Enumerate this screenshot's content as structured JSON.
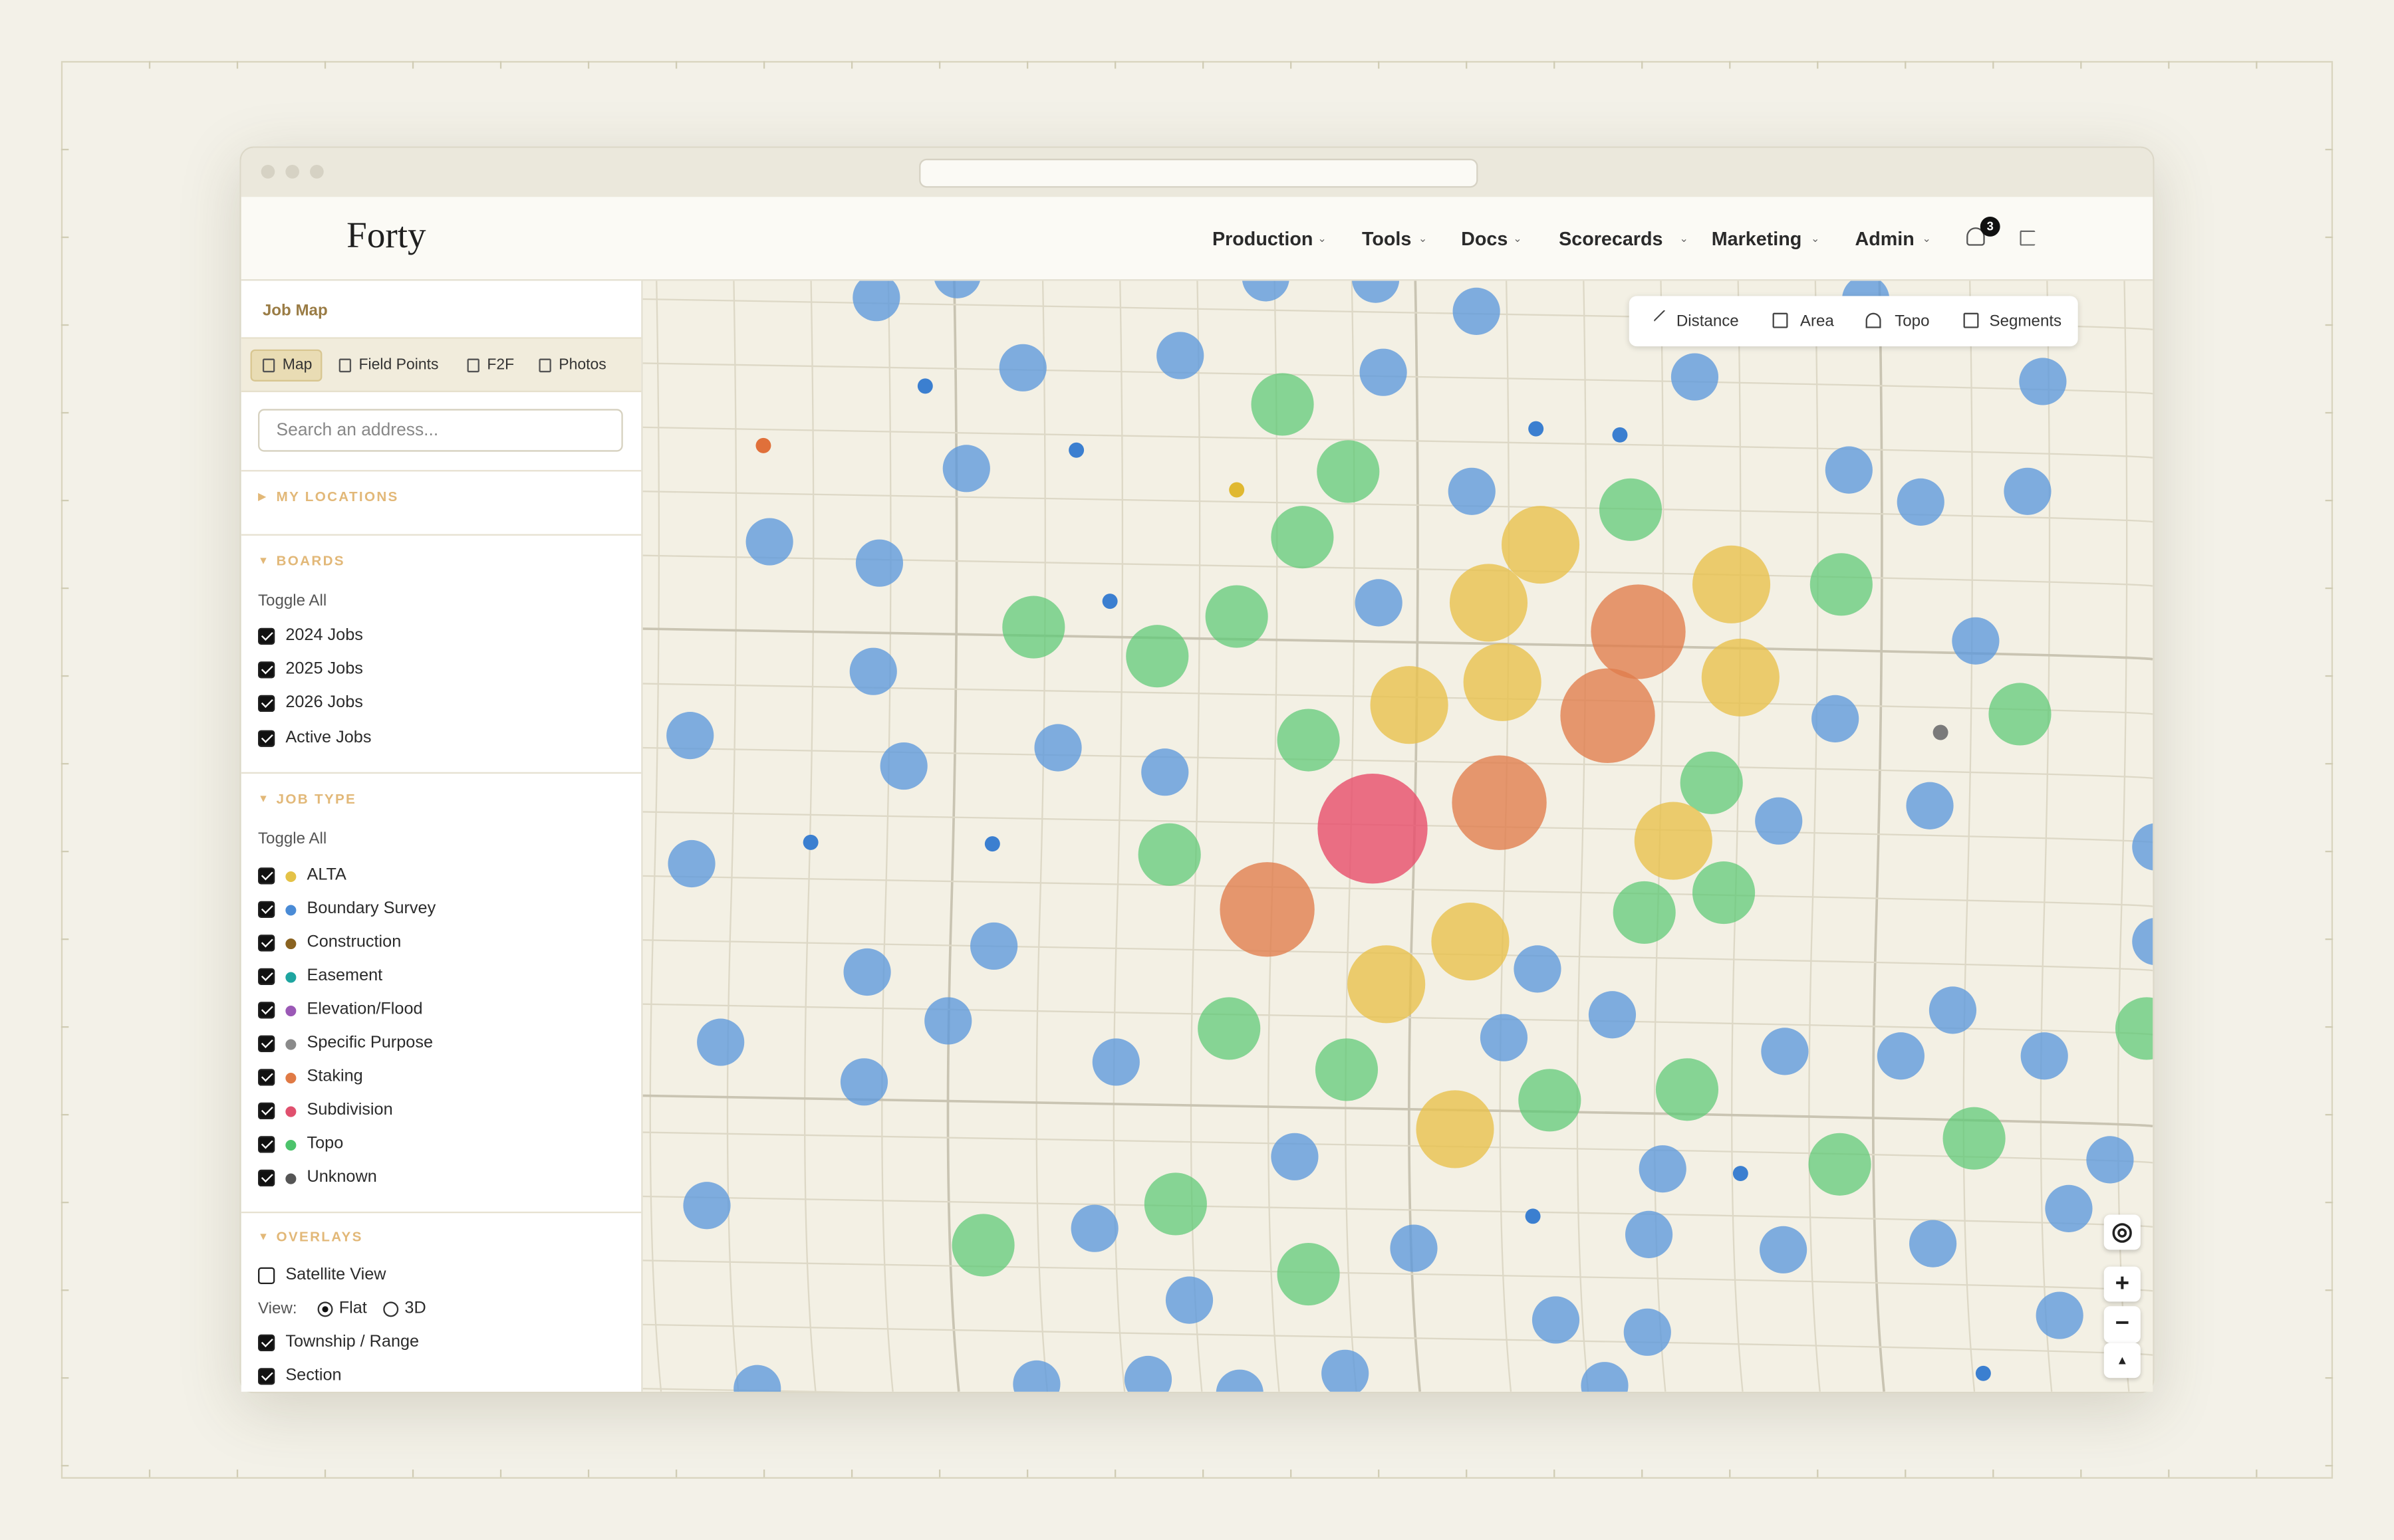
{
  "header": {
    "brand": "Forty",
    "nav": [
      "Production",
      "Tools",
      "Docs",
      "Scorecards",
      "Marketing",
      "Admin"
    ],
    "notifications": "3"
  },
  "sidebar": {
    "title": "Job Map",
    "tabs": [
      "Map",
      "Field Points",
      "F2F",
      "Photos"
    ],
    "search_placeholder": "Search an address...",
    "my_locations": "MY LOCATIONS",
    "boards": {
      "title": "BOARDS",
      "toggle": "Toggle All",
      "items": [
        {
          "label": "2024 Jobs",
          "checked": true
        },
        {
          "label": "2025 Jobs",
          "checked": true
        },
        {
          "label": "2026 Jobs",
          "checked": true
        },
        {
          "label": "Active Jobs",
          "checked": true
        }
      ]
    },
    "job_type": {
      "title": "JOB TYPE",
      "toggle": "Toggle All",
      "items": [
        {
          "label": "ALTA",
          "color": "#e4c247",
          "checked": true
        },
        {
          "label": "Boundary Survey",
          "color": "#4a8bd6",
          "checked": true
        },
        {
          "label": "Construction",
          "color": "#8a6320",
          "checked": true
        },
        {
          "label": "Easement",
          "color": "#1ea5a0",
          "checked": true
        },
        {
          "label": "Elevation/Flood",
          "color": "#9b59b6",
          "checked": true
        },
        {
          "label": "Specific Purpose",
          "color": "#8a8a8a",
          "checked": true
        },
        {
          "label": "Staking",
          "color": "#e07a45",
          "checked": true
        },
        {
          "label": "Subdivision",
          "color": "#e0506e",
          "checked": true
        },
        {
          "label": "Topo",
          "color": "#4cc36b",
          "checked": true
        },
        {
          "label": "Unknown",
          "color": "#555555",
          "checked": true
        }
      ]
    },
    "overlays": {
      "title": "OVERLAYS",
      "satellite": {
        "label": "Satellite View",
        "checked": false
      },
      "view_label": "View:",
      "view_options": [
        {
          "label": "Flat",
          "selected": true
        },
        {
          "label": "3D",
          "selected": false
        }
      ],
      "items": [
        {
          "label": "Township / Range",
          "checked": true
        },
        {
          "label": "Section",
          "checked": true
        }
      ]
    }
  },
  "map": {
    "tools": [
      "Distance",
      "Area",
      "Topo",
      "Segments"
    ]
  }
}
